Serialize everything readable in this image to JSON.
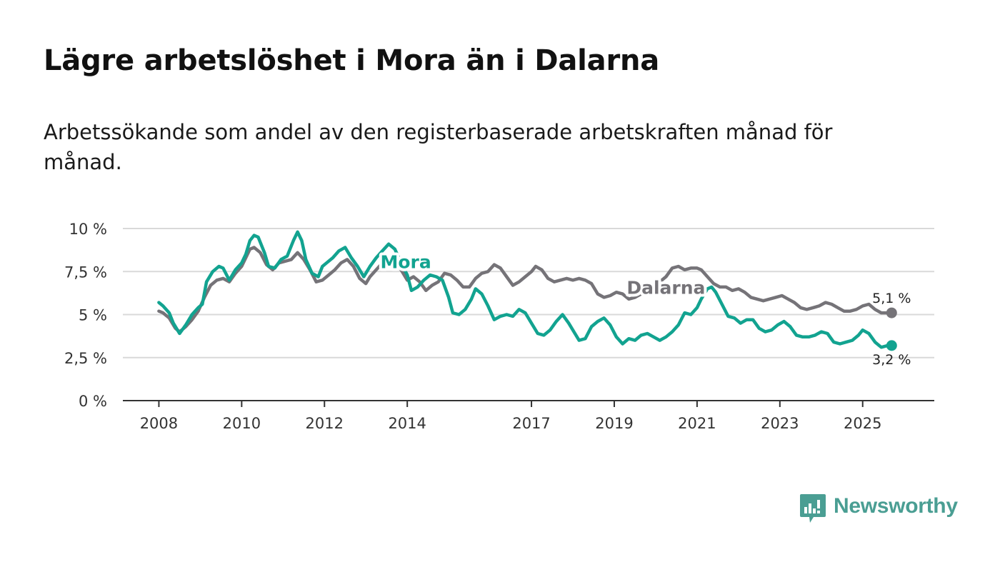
{
  "title": "Lägre arbetslöshet i Mora än i Dalarna",
  "subtitle": "Arbetssökande som andel av den registerbaserade arbetskraften månad för månad.",
  "brand": {
    "name": "Newsworthy",
    "color": "#4a9e93",
    "icon": "newsworthy-logo-icon"
  },
  "chart_data": {
    "type": "line",
    "title": "Lägre arbetslöshet i Mora än i Dalarna",
    "xlabel": "",
    "ylabel": "",
    "x_ticks": [
      2008,
      2010,
      2012,
      2014,
      2017,
      2019,
      2021,
      2023,
      2025
    ],
    "x_tick_labels": [
      "2008",
      "2010",
      "2012",
      "2014",
      "2017",
      "2019",
      "2021",
      "2023",
      "2025"
    ],
    "y_ticks": [
      0,
      2.5,
      5,
      7.5,
      10
    ],
    "y_tick_labels": [
      "0 %",
      "2,5 %",
      "5 %",
      "7,5 %",
      "10 %"
    ],
    "xlim": [
      2007.13,
      2026.73
    ],
    "ylim": [
      0,
      10
    ],
    "grid": true,
    "series": [
      {
        "name": "Dalarna",
        "color": "#757378",
        "end_label": "5,1 %",
        "label_at": [
          2019.3,
          6.2
        ],
        "points": [
          [
            2008.0,
            5.2
          ],
          [
            2008.1,
            5.1
          ],
          [
            2008.25,
            4.8
          ],
          [
            2008.4,
            4.2
          ],
          [
            2008.5,
            4.0
          ],
          [
            2008.65,
            4.3
          ],
          [
            2008.8,
            4.7
          ],
          [
            2008.95,
            5.2
          ],
          [
            2009.1,
            6.0
          ],
          [
            2009.25,
            6.7
          ],
          [
            2009.4,
            7.0
          ],
          [
            2009.55,
            7.1
          ],
          [
            2009.7,
            6.9
          ],
          [
            2009.85,
            7.4
          ],
          [
            2010.0,
            7.8
          ],
          [
            2010.1,
            8.3
          ],
          [
            2010.2,
            8.8
          ],
          [
            2010.3,
            8.9
          ],
          [
            2010.45,
            8.6
          ],
          [
            2010.6,
            7.9
          ],
          [
            2010.75,
            7.6
          ],
          [
            2010.9,
            8.0
          ],
          [
            2011.05,
            8.1
          ],
          [
            2011.2,
            8.2
          ],
          [
            2011.35,
            8.6
          ],
          [
            2011.5,
            8.2
          ],
          [
            2011.65,
            7.6
          ],
          [
            2011.8,
            6.9
          ],
          [
            2011.95,
            7.0
          ],
          [
            2012.1,
            7.3
          ],
          [
            2012.25,
            7.6
          ],
          [
            2012.4,
            8.0
          ],
          [
            2012.55,
            8.2
          ],
          [
            2012.7,
            7.8
          ],
          [
            2012.85,
            7.1
          ],
          [
            2013.0,
            6.8
          ],
          [
            2013.1,
            7.2
          ],
          [
            2013.25,
            7.6
          ],
          [
            2013.4,
            8.0
          ],
          [
            2013.55,
            8.3
          ],
          [
            2013.7,
            8.1
          ],
          [
            2013.85,
            7.6
          ],
          [
            2014.0,
            7.0
          ],
          [
            2014.15,
            7.2
          ],
          [
            2014.3,
            6.9
          ],
          [
            2014.45,
            6.4
          ],
          [
            2014.6,
            6.7
          ],
          [
            2014.75,
            6.9
          ],
          [
            2014.9,
            7.4
          ],
          [
            2015.05,
            7.3
          ],
          [
            2015.2,
            7.0
          ],
          [
            2015.35,
            6.6
          ],
          [
            2015.5,
            6.6
          ],
          [
            2015.65,
            7.1
          ],
          [
            2015.8,
            7.4
          ],
          [
            2015.95,
            7.5
          ],
          [
            2016.1,
            7.9
          ],
          [
            2016.25,
            7.7
          ],
          [
            2016.4,
            7.2
          ],
          [
            2016.55,
            6.7
          ],
          [
            2016.7,
            6.9
          ],
          [
            2016.85,
            7.2
          ],
          [
            2017.0,
            7.5
          ],
          [
            2017.1,
            7.8
          ],
          [
            2017.25,
            7.6
          ],
          [
            2017.4,
            7.1
          ],
          [
            2017.55,
            6.9
          ],
          [
            2017.7,
            7.0
          ],
          [
            2017.85,
            7.1
          ],
          [
            2018.0,
            7.0
          ],
          [
            2018.15,
            7.1
          ],
          [
            2018.3,
            7.0
          ],
          [
            2018.45,
            6.8
          ],
          [
            2018.6,
            6.2
          ],
          [
            2018.75,
            6.0
          ],
          [
            2018.9,
            6.1
          ],
          [
            2019.05,
            6.3
          ],
          [
            2019.2,
            6.2
          ],
          [
            2019.35,
            5.9
          ],
          [
            2019.5,
            6.0
          ],
          [
            2019.65,
            6.2
          ],
          [
            2019.8,
            6.4
          ],
          [
            2019.95,
            6.6
          ],
          [
            2020.1,
            6.9
          ],
          [
            2020.25,
            7.2
          ],
          [
            2020.4,
            7.7
          ],
          [
            2020.55,
            7.8
          ],
          [
            2020.7,
            7.6
          ],
          [
            2020.85,
            7.7
          ],
          [
            2021.0,
            7.7
          ],
          [
            2021.1,
            7.6
          ],
          [
            2021.25,
            7.2
          ],
          [
            2021.4,
            6.8
          ],
          [
            2021.55,
            6.6
          ],
          [
            2021.7,
            6.6
          ],
          [
            2021.85,
            6.4
          ],
          [
            2022.0,
            6.5
          ],
          [
            2022.15,
            6.3
          ],
          [
            2022.3,
            6.0
          ],
          [
            2022.45,
            5.9
          ],
          [
            2022.6,
            5.8
          ],
          [
            2022.75,
            5.9
          ],
          [
            2022.9,
            6.0
          ],
          [
            2023.05,
            6.1
          ],
          [
            2023.2,
            5.9
          ],
          [
            2023.35,
            5.7
          ],
          [
            2023.5,
            5.4
          ],
          [
            2023.65,
            5.3
          ],
          [
            2023.8,
            5.4
          ],
          [
            2023.95,
            5.5
          ],
          [
            2024.1,
            5.7
          ],
          [
            2024.25,
            5.6
          ],
          [
            2024.4,
            5.4
          ],
          [
            2024.55,
            5.2
          ],
          [
            2024.7,
            5.2
          ],
          [
            2024.85,
            5.3
          ],
          [
            2025.0,
            5.5
          ],
          [
            2025.15,
            5.6
          ],
          [
            2025.3,
            5.3
          ],
          [
            2025.45,
            5.1
          ],
          [
            2025.6,
            5.1
          ],
          [
            2025.7,
            5.1
          ]
        ]
      },
      {
        "name": "Mora",
        "color": "#12a390",
        "end_label": "3,2 %",
        "label_at": [
          2013.35,
          7.7
        ],
        "points": [
          [
            2008.0,
            5.7
          ],
          [
            2008.1,
            5.5
          ],
          [
            2008.25,
            5.1
          ],
          [
            2008.35,
            4.5
          ],
          [
            2008.5,
            3.9
          ],
          [
            2008.65,
            4.4
          ],
          [
            2008.8,
            5.0
          ],
          [
            2008.95,
            5.4
          ],
          [
            2009.05,
            5.6
          ],
          [
            2009.15,
            6.9
          ],
          [
            2009.3,
            7.5
          ],
          [
            2009.45,
            7.8
          ],
          [
            2009.55,
            7.7
          ],
          [
            2009.7,
            7.0
          ],
          [
            2009.85,
            7.6
          ],
          [
            2010.0,
            8.0
          ],
          [
            2010.1,
            8.5
          ],
          [
            2010.2,
            9.3
          ],
          [
            2010.3,
            9.6
          ],
          [
            2010.4,
            9.5
          ],
          [
            2010.55,
            8.6
          ],
          [
            2010.65,
            7.8
          ],
          [
            2010.8,
            7.7
          ],
          [
            2010.95,
            8.2
          ],
          [
            2011.1,
            8.4
          ],
          [
            2011.25,
            9.3
          ],
          [
            2011.35,
            9.8
          ],
          [
            2011.45,
            9.3
          ],
          [
            2011.55,
            8.2
          ],
          [
            2011.7,
            7.4
          ],
          [
            2011.85,
            7.2
          ],
          [
            2011.95,
            7.8
          ],
          [
            2012.05,
            8.0
          ],
          [
            2012.2,
            8.3
          ],
          [
            2012.35,
            8.7
          ],
          [
            2012.5,
            8.9
          ],
          [
            2012.65,
            8.3
          ],
          [
            2012.8,
            7.8
          ],
          [
            2012.95,
            7.2
          ],
          [
            2013.1,
            7.8
          ],
          [
            2013.25,
            8.3
          ],
          [
            2013.4,
            8.7
          ],
          [
            2013.55,
            9.1
          ],
          [
            2013.7,
            8.8
          ],
          [
            2013.85,
            8.0
          ],
          [
            2014.0,
            7.3
          ],
          [
            2014.1,
            6.4
          ],
          [
            2014.25,
            6.6
          ],
          [
            2014.4,
            7.0
          ],
          [
            2014.55,
            7.3
          ],
          [
            2014.7,
            7.2
          ],
          [
            2014.85,
            7.0
          ],
          [
            2015.0,
            6.0
          ],
          [
            2015.1,
            5.1
          ],
          [
            2015.25,
            5.0
          ],
          [
            2015.4,
            5.3
          ],
          [
            2015.55,
            5.9
          ],
          [
            2015.65,
            6.5
          ],
          [
            2015.8,
            6.2
          ],
          [
            2015.95,
            5.5
          ],
          [
            2016.1,
            4.7
          ],
          [
            2016.25,
            4.9
          ],
          [
            2016.4,
            5.0
          ],
          [
            2016.55,
            4.9
          ],
          [
            2016.7,
            5.3
          ],
          [
            2016.85,
            5.1
          ],
          [
            2017.0,
            4.5
          ],
          [
            2017.15,
            3.9
          ],
          [
            2017.3,
            3.8
          ],
          [
            2017.45,
            4.1
          ],
          [
            2017.6,
            4.6
          ],
          [
            2017.75,
            5.0
          ],
          [
            2017.9,
            4.5
          ],
          [
            2018.05,
            3.9
          ],
          [
            2018.15,
            3.5
          ],
          [
            2018.3,
            3.6
          ],
          [
            2018.45,
            4.3
          ],
          [
            2018.6,
            4.6
          ],
          [
            2018.75,
            4.8
          ],
          [
            2018.9,
            4.4
          ],
          [
            2019.05,
            3.7
          ],
          [
            2019.2,
            3.3
          ],
          [
            2019.35,
            3.6
          ],
          [
            2019.5,
            3.5
          ],
          [
            2019.65,
            3.8
          ],
          [
            2019.8,
            3.9
          ],
          [
            2019.95,
            3.7
          ],
          [
            2020.1,
            3.5
          ],
          [
            2020.25,
            3.7
          ],
          [
            2020.4,
            4.0
          ],
          [
            2020.55,
            4.4
          ],
          [
            2020.7,
            5.1
          ],
          [
            2020.85,
            5.0
          ],
          [
            2021.0,
            5.4
          ],
          [
            2021.1,
            5.9
          ],
          [
            2021.25,
            6.5
          ],
          [
            2021.35,
            6.6
          ],
          [
            2021.45,
            6.3
          ],
          [
            2021.6,
            5.6
          ],
          [
            2021.75,
            4.9
          ],
          [
            2021.9,
            4.8
          ],
          [
            2022.05,
            4.5
          ],
          [
            2022.2,
            4.7
          ],
          [
            2022.35,
            4.7
          ],
          [
            2022.5,
            4.2
          ],
          [
            2022.65,
            4.0
          ],
          [
            2022.8,
            4.1
          ],
          [
            2022.95,
            4.4
          ],
          [
            2023.1,
            4.6
          ],
          [
            2023.25,
            4.3
          ],
          [
            2023.4,
            3.8
          ],
          [
            2023.55,
            3.7
          ],
          [
            2023.7,
            3.7
          ],
          [
            2023.85,
            3.8
          ],
          [
            2024.0,
            4.0
          ],
          [
            2024.15,
            3.9
          ],
          [
            2024.3,
            3.4
          ],
          [
            2024.45,
            3.3
          ],
          [
            2024.6,
            3.4
          ],
          [
            2024.75,
            3.5
          ],
          [
            2024.9,
            3.8
          ],
          [
            2025.0,
            4.1
          ],
          [
            2025.15,
            3.9
          ],
          [
            2025.3,
            3.4
          ],
          [
            2025.45,
            3.1
          ],
          [
            2025.6,
            3.2
          ],
          [
            2025.7,
            3.2
          ]
        ]
      }
    ]
  }
}
